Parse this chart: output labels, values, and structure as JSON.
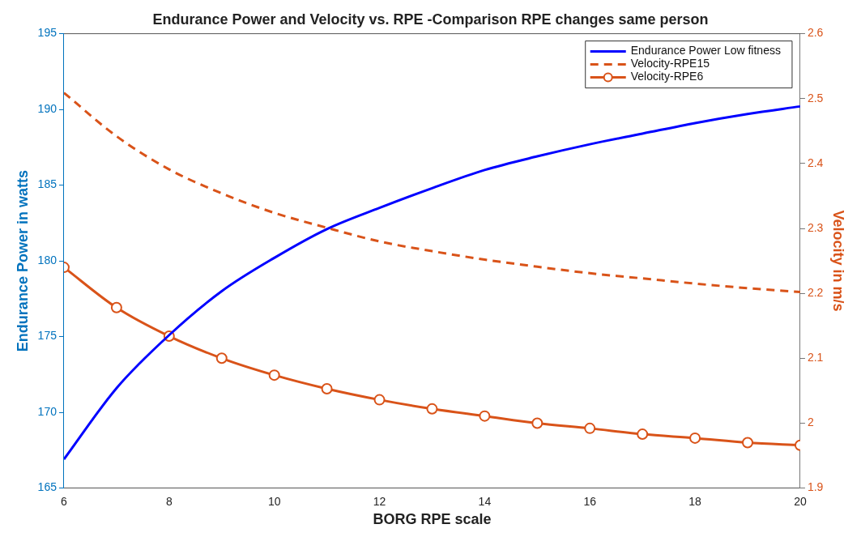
{
  "chart_data": {
    "type": "line",
    "title": "Endurance Power and Velocity vs. RPE -Comparison RPE changes same person",
    "xlabel": "BORG RPE scale",
    "ylabel": "Endurance Power in watts",
    "y2label": "Velocity in m/s",
    "x": [
      6,
      7,
      8,
      9,
      10,
      11,
      12,
      13,
      14,
      15,
      16,
      17,
      18,
      19,
      20
    ],
    "xlim": [
      6,
      20
    ],
    "xticks": [
      6,
      8,
      10,
      12,
      14,
      16,
      18,
      20
    ],
    "ylim": [
      165,
      195
    ],
    "yticks": [
      165,
      170,
      175,
      180,
      185,
      190,
      195
    ],
    "y2lim": [
      1.9,
      2.6
    ],
    "y2ticks": [
      1.9,
      2,
      2.1,
      2.2,
      2.3,
      2.4,
      2.5,
      2.6
    ],
    "grid": false,
    "legend": "top right",
    "series": [
      {
        "name": "Endurance Power Low fitness",
        "color": "#0000ff",
        "line_style": "solid",
        "marker": "none",
        "values": [
          166.9,
          171.6,
          175.1,
          178.0,
          180.2,
          182.1,
          183.5,
          184.8,
          186.0,
          186.9,
          187.7,
          188.4,
          189.1,
          189.7,
          190.2
        ]
      },
      {
        "name": "Velocity-RPE15",
        "color": "#d95319",
        "axis": "y2",
        "line_style": "dashed",
        "marker": "none",
        "values": [
          2.509,
          2.442,
          2.391,
          2.354,
          2.324,
          2.301,
          2.28,
          2.265,
          2.252,
          2.241,
          2.231,
          2.223,
          2.215,
          2.208,
          2.202
        ]
      },
      {
        "name": "Velocity-RPE6",
        "color": "#d95319",
        "axis": "y2",
        "line_style": "solid",
        "marker": "circle",
        "values": [
          2.24,
          2.178,
          2.134,
          2.1,
          2.074,
          2.053,
          2.036,
          2.022,
          2.011,
          2.0,
          1.992,
          1.983,
          1.977,
          1.97,
          1.966
        ]
      }
    ]
  }
}
